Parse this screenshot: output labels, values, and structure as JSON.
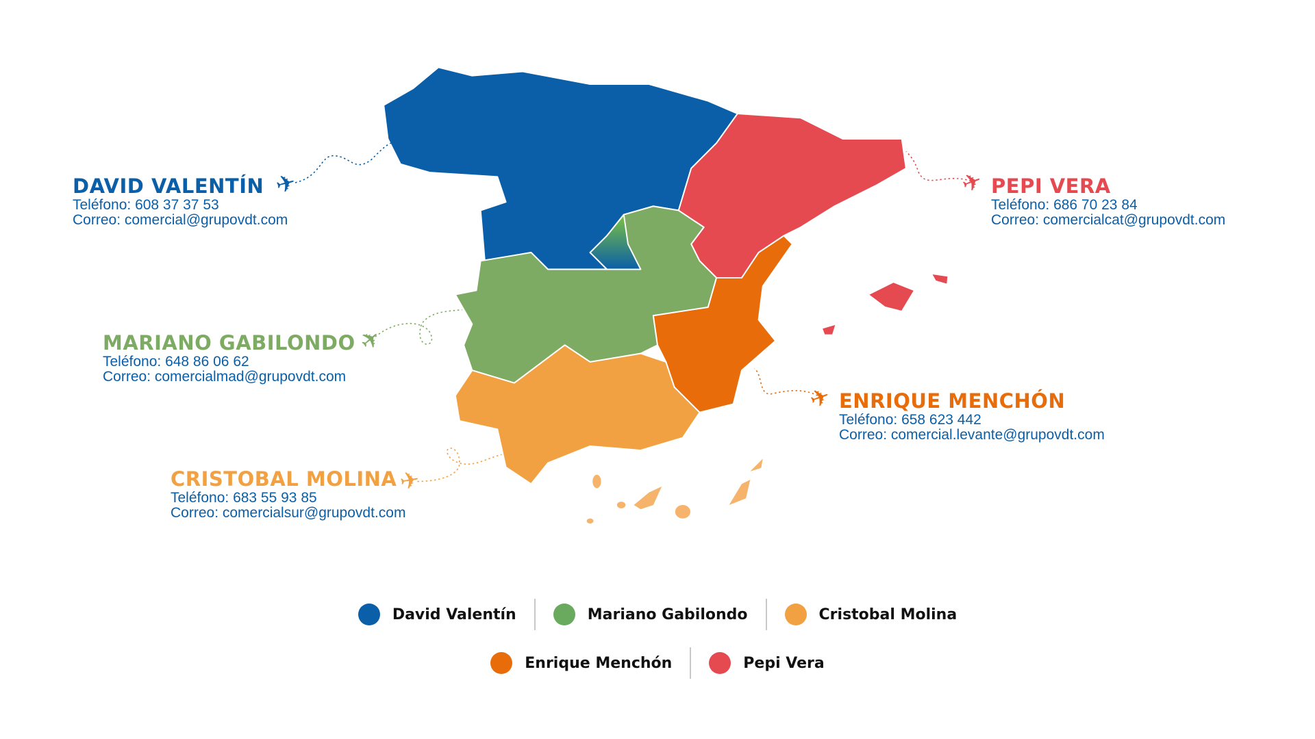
{
  "colors": {
    "blue": "#0a5fa8",
    "green": "#7eab63",
    "light_orange": "#f2a142",
    "orange": "#e86c0a",
    "red": "#e54a50",
    "madrid_gradient": [
      "#7cc242",
      "#0a5fa8"
    ]
  },
  "representatives": [
    {
      "id": "david",
      "name": "DAVID VALENTÍN",
      "phone": "Teléfono: 608 37 37 53",
      "email": "Correo: comercial@grupovdt.com",
      "color": "#0a5fa8",
      "icon": "airplane-icon"
    },
    {
      "id": "pepi",
      "name": "PEPI VERA",
      "phone": "Teléfono: 686 70 23 84",
      "email": "Correo: comercialcat@grupovdt.com",
      "color": "#e54a50",
      "icon": "airplane-icon"
    },
    {
      "id": "mariano",
      "name": "MARIANO GABILONDO",
      "phone": "Teléfono: 648 86 06 62",
      "email": "Correo: comercialmad@grupovdt.com",
      "color": "#7eab63",
      "icon": "airplane-icon"
    },
    {
      "id": "enrique",
      "name": "ENRIQUE MENCHÓN",
      "phone": "Teléfono: 658 623 442",
      "email": "Correo: comercial.levante@grupovdt.com",
      "color": "#e86c0a",
      "icon": "airplane-icon"
    },
    {
      "id": "cristobal",
      "name": "CRISTOBAL MOLINA",
      "phone": "Teléfono: 683 55 93 85",
      "email": "Correo: comercialsur@grupovdt.com",
      "color": "#f2a142",
      "icon": "airplane-icon"
    }
  ],
  "legend": {
    "row1": [
      {
        "label": "David Valentín",
        "color": "#0a5fa8"
      },
      {
        "label": "Mariano Gabilondo",
        "color": "#6aaa5e"
      },
      {
        "label": "Cristobal Molina",
        "color": "#f2a142"
      }
    ],
    "row2": [
      {
        "label": "Enrique Menchón",
        "color": "#e86c0a"
      },
      {
        "label": "Pepi Vera",
        "color": "#e54a50"
      }
    ]
  }
}
